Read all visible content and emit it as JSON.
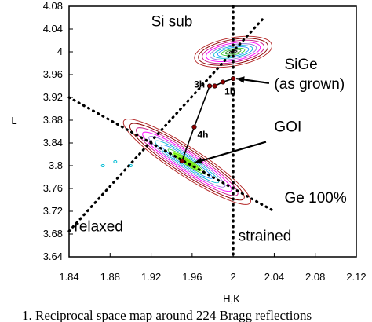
{
  "chart_data": {
    "type": "scatter",
    "xlabel": "H,K",
    "ylabel": "L",
    "xlim": [
      1.84,
      2.12
    ],
    "ylim": [
      3.64,
      4.08
    ],
    "x_ticks": [
      "1.84",
      "1.88",
      "1.92",
      "1.96",
      "2",
      "2.04",
      "2.08",
      "2.12"
    ],
    "y_ticks": [
      "3.64",
      "3.68",
      "3.72",
      "3.76",
      "3.8",
      "3.84",
      "3.88",
      "3.92",
      "3.96",
      "4",
      "4.04",
      "4.08"
    ],
    "grid": false,
    "reference_lines": [
      {
        "name": "strained",
        "type": "vertical",
        "x": 2.0
      },
      {
        "name": "relaxed",
        "type": "line",
        "points": [
          [
            1.84,
            3.685
          ],
          [
            2.03,
            4.06
          ]
        ]
      },
      {
        "name": "Ge 100%",
        "type": "line",
        "points": [
          [
            1.84,
            3.92
          ],
          [
            2.04,
            3.72
          ]
        ]
      }
    ],
    "annealing_path": {
      "points": [
        {
          "label": "",
          "x": 2.0,
          "y": 3.953
        },
        {
          "label": "1h",
          "x": 1.99,
          "y": 3.947
        },
        {
          "label": "",
          "x": 1.982,
          "y": 3.94
        },
        {
          "label": "3h",
          "x": 1.977,
          "y": 3.94
        },
        {
          "label": "4h",
          "x": 1.962,
          "y": 3.868
        },
        {
          "label": "",
          "x": 1.95,
          "y": 3.808
        }
      ]
    },
    "contour_regions": [
      {
        "name": "Si sub",
        "center": [
          2.0,
          4.0
        ],
        "spread": [
          0.04,
          0.025
        ]
      },
      {
        "name": "GOI",
        "center": [
          1.955,
          3.807
        ],
        "spread": [
          0.12,
          0.06
        ]
      }
    ],
    "annotations": [
      {
        "text": "Si sub",
        "x": 1.92,
        "y": 4.045
      },
      {
        "text": "SiGe",
        "x": 2.05,
        "y": 3.97
      },
      {
        "text": "(as grown)",
        "x": 2.04,
        "y": 3.935
      },
      {
        "text": "GOI",
        "x": 2.04,
        "y": 3.86
      },
      {
        "text": "Ge 100%",
        "x": 2.05,
        "y": 3.735
      },
      {
        "text": "relaxed",
        "x": 1.845,
        "y": 3.685
      },
      {
        "text": "strained",
        "x": 2.005,
        "y": 3.668
      }
    ]
  },
  "caption": "1. Reciprocal space map around 224 Bragg reflections"
}
